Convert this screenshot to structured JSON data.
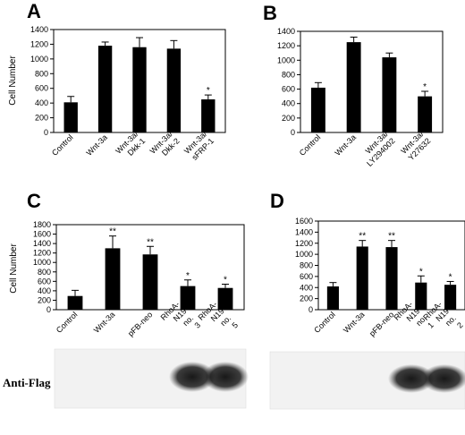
{
  "chart_data": [
    {
      "panel": "A",
      "type": "bar",
      "ylabel": "Cell Number",
      "ylim": [
        0,
        1400
      ],
      "yticks": [
        0,
        200,
        400,
        600,
        800,
        1000,
        1200,
        1400
      ],
      "categories": [
        "Control",
        "Wnt-3a",
        "Wnt-3a/ Dkk-1",
        "Wnt-3a/ Dkk-2",
        "Wnt-3a/ sFRP-1"
      ],
      "values": [
        410,
        1180,
        1160,
        1140,
        450
      ],
      "errors": [
        80,
        50,
        130,
        110,
        60
      ],
      "significance": [
        "",
        "",
        "",
        "",
        "*"
      ]
    },
    {
      "panel": "B",
      "type": "bar",
      "ylabel": "",
      "ylim": [
        0,
        1400
      ],
      "yticks": [
        0,
        200,
        400,
        600,
        800,
        1000,
        1200,
        1400
      ],
      "categories": [
        "Control",
        "Wnt-3a",
        "Wnt-3a/ LY294002",
        "Wnt-3a/ Y27632"
      ],
      "values": [
        620,
        1250,
        1040,
        500
      ],
      "errors": [
        70,
        70,
        60,
        70
      ],
      "significance": [
        "",
        "",
        "",
        "*"
      ]
    },
    {
      "panel": "C",
      "type": "bar",
      "ylabel": "Cell Number",
      "ylim": [
        0,
        1800
      ],
      "yticks": [
        0,
        200,
        400,
        600,
        800,
        1000,
        1200,
        1400,
        1600,
        1800
      ],
      "categories": [
        "Control",
        "Wnt-3a",
        "pFB-neo",
        "RhoA- N19 no. 3",
        "RhoA- N19 no. 5"
      ],
      "values": [
        290,
        1300,
        1170,
        500,
        460
      ],
      "errors": [
        120,
        260,
        170,
        130,
        80
      ],
      "significance": [
        "",
        "**",
        "**",
        "*",
        "*"
      ]
    },
    {
      "panel": "D",
      "type": "bar",
      "ylabel": "",
      "ylim": [
        0,
        1600
      ],
      "yticks": [
        0,
        200,
        400,
        600,
        800,
        1000,
        1200,
        1400,
        1600
      ],
      "categories": [
        "Control",
        "Wnt-3a",
        "pFB-neo",
        "RhoA- N19 no. 1",
        "RhoA- N19 no. 2"
      ],
      "values": [
        420,
        1140,
        1130,
        490,
        450
      ],
      "errors": [
        70,
        110,
        120,
        120,
        60
      ],
      "significance": [
        "",
        "**",
        "**",
        "*",
        "*"
      ]
    }
  ],
  "blot": {
    "label": "Anti-Flag",
    "left_bands": [
      0,
      0,
      0,
      0.9,
      0.9
    ],
    "right_bands": [
      0,
      0,
      0,
      0.9,
      0.9
    ]
  }
}
